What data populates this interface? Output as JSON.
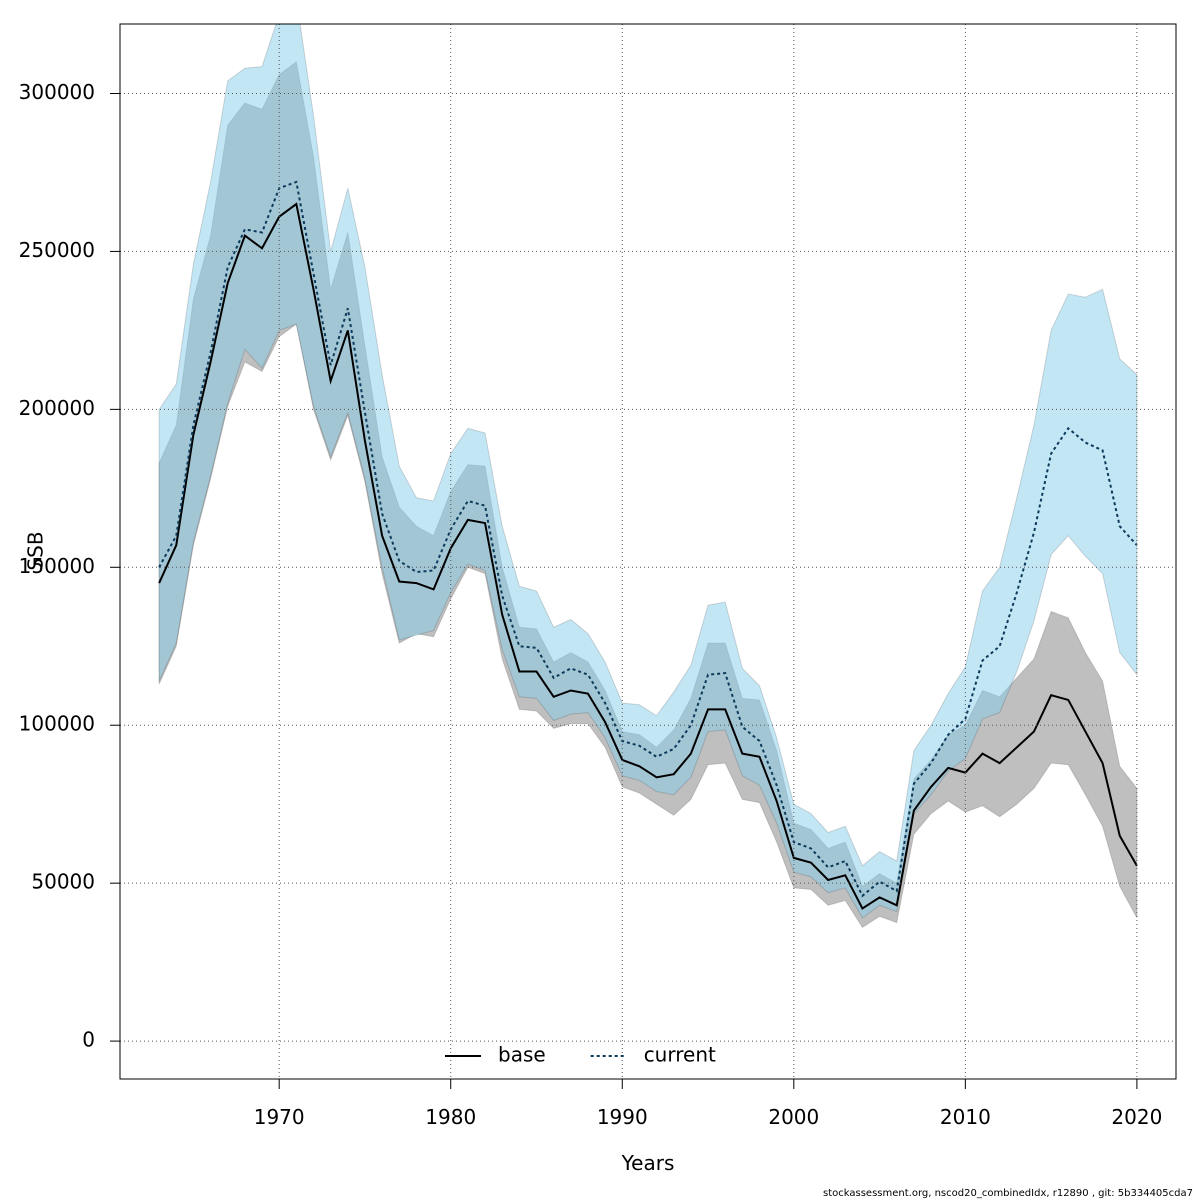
{
  "chart_data": {
    "type": "line",
    "x_label": "Years",
    "y_label": "SSB",
    "footer": "stockassessment.org, nscod20_combinedIdx, r12890 , git: 5b334405cda7",
    "x": [
      1963,
      1964,
      1965,
      1966,
      1967,
      1968,
      1969,
      1970,
      1971,
      1972,
      1973,
      1974,
      1975,
      1976,
      1977,
      1978,
      1979,
      1980,
      1981,
      1982,
      1983,
      1984,
      1985,
      1986,
      1987,
      1988,
      1989,
      1990,
      1991,
      1992,
      1993,
      1994,
      1995,
      1996,
      1997,
      1998,
      1999,
      2000,
      2001,
      2002,
      2003,
      2004,
      2005,
      2006,
      2007,
      2008,
      2009,
      2010,
      2011,
      2012,
      2013,
      2014,
      2015,
      2016,
      2017,
      2018,
      2019,
      2020
    ],
    "series": [
      {
        "name": "base",
        "color": "#000000",
        "dash": "none",
        "band_color": "rgba(128,128,128,0.5)",
        "values": [
          145000,
          157000,
          192000,
          215000,
          240000,
          255000,
          251000,
          261000,
          265000,
          238000,
          209000,
          225000,
          190000,
          160000,
          145500,
          145000,
          143000,
          156000,
          165000,
          164000,
          135000,
          117000,
          117000,
          109000,
          111000,
          110000,
          101000,
          89000,
          87000,
          83500,
          84500,
          91000,
          105000,
          105000,
          91000,
          90000,
          76000,
          58000,
          56500,
          51000,
          52500,
          42000,
          45500,
          43000,
          73000,
          80500,
          86500,
          85000,
          91000,
          88000,
          93000,
          98000,
          109500,
          108000,
          98000,
          88000,
          65000,
          55500
        ],
        "lower": [
          113000,
          125000,
          157000,
          178000,
          201000,
          215000,
          212000,
          223000,
          227000,
          200000,
          184000,
          198000,
          177000,
          148000,
          126000,
          129000,
          128000,
          140000,
          150000,
          148000,
          121000,
          105000,
          104500,
          99000,
          100500,
          100500,
          93000,
          80500,
          78500,
          75000,
          71500,
          76500,
          87500,
          88000,
          76500,
          75500,
          63000,
          48500,
          48000,
          43000,
          44500,
          36000,
          39500,
          37500,
          65500,
          72000,
          76000,
          72500,
          74500,
          71000,
          75000,
          80000,
          88000,
          87500,
          78000,
          68000,
          49000,
          39000
        ],
        "upper": [
          183000,
          195000,
          235000,
          255000,
          290000,
          297000,
          295000,
          306000,
          310000,
          280000,
          238000,
          256000,
          220000,
          185000,
          169000,
          163000,
          160000,
          174000,
          182500,
          182000,
          150000,
          131000,
          130500,
          120000,
          123000,
          120000,
          111000,
          98000,
          97000,
          93000,
          98500,
          108500,
          126000,
          126000,
          108500,
          108000,
          92000,
          69000,
          67000,
          61000,
          63000,
          49000,
          53000,
          50000,
          83000,
          89000,
          97000,
          100000,
          111000,
          109000,
          115000,
          121000,
          136000,
          134000,
          123000,
          114000,
          87000,
          80000
        ]
      },
      {
        "name": "current",
        "color": "#0b3a5a",
        "dash": "3,3",
        "band_color": "rgba(135,206,235,0.5)",
        "values": [
          150000,
          160000,
          195000,
          218000,
          245000,
          257000,
          256000,
          270000,
          272000,
          243000,
          214000,
          232000,
          199000,
          167000,
          152000,
          148500,
          149000,
          162000,
          171000,
          169500,
          141000,
          125000,
          124500,
          115000,
          118000,
          116000,
          107000,
          95000,
          93500,
          90000,
          92500,
          100000,
          116000,
          116500,
          99500,
          95000,
          81000,
          63000,
          61000,
          55000,
          57000,
          46000,
          50500,
          47500,
          81500,
          88000,
          97000,
          102000,
          120500,
          125000,
          142000,
          161000,
          186000,
          194000,
          189500,
          187000,
          163000,
          157000
        ],
        "lower": [
          114000,
          126000,
          158000,
          179000,
          202000,
          219000,
          213000,
          225000,
          227000,
          201000,
          185000,
          199000,
          178000,
          150000,
          127000,
          128500,
          130000,
          142000,
          151000,
          149000,
          124000,
          109000,
          108500,
          101500,
          103500,
          104000,
          96000,
          84000,
          82500,
          79000,
          78000,
          83500,
          98000,
          98500,
          84000,
          81000,
          69000,
          53500,
          52000,
          47000,
          48500,
          39000,
          43000,
          41000,
          72000,
          78000,
          85500,
          89500,
          102000,
          104000,
          117000,
          133000,
          154000,
          160000,
          153500,
          148000,
          123000,
          116000
        ],
        "upper": [
          200000,
          208000,
          246000,
          272000,
          304000,
          308000,
          308500,
          325000,
          330000,
          293000,
          250000,
          270000,
          245000,
          211000,
          182000,
          172000,
          171000,
          186000,
          194000,
          192500,
          163000,
          144000,
          142500,
          131000,
          133500,
          129000,
          120000,
          107000,
          106500,
          103000,
          110500,
          119000,
          138000,
          139000,
          118000,
          112500,
          96000,
          75000,
          72000,
          66000,
          68000,
          55500,
          60000,
          57000,
          92000,
          100000,
          110000,
          118500,
          142500,
          150000,
          172000,
          195000,
          225000,
          236500,
          235500,
          238000,
          216000,
          211000
        ]
      }
    ],
    "xlim": [
      1960.72,
      2022.28
    ],
    "ylim": [
      -12000,
      322000
    ],
    "xticks": [
      1970,
      1980,
      1990,
      2000,
      2010,
      2020
    ],
    "yticks": [
      0,
      50000,
      100000,
      150000,
      200000,
      250000,
      300000
    ],
    "grid": true,
    "legend": "bottom"
  }
}
